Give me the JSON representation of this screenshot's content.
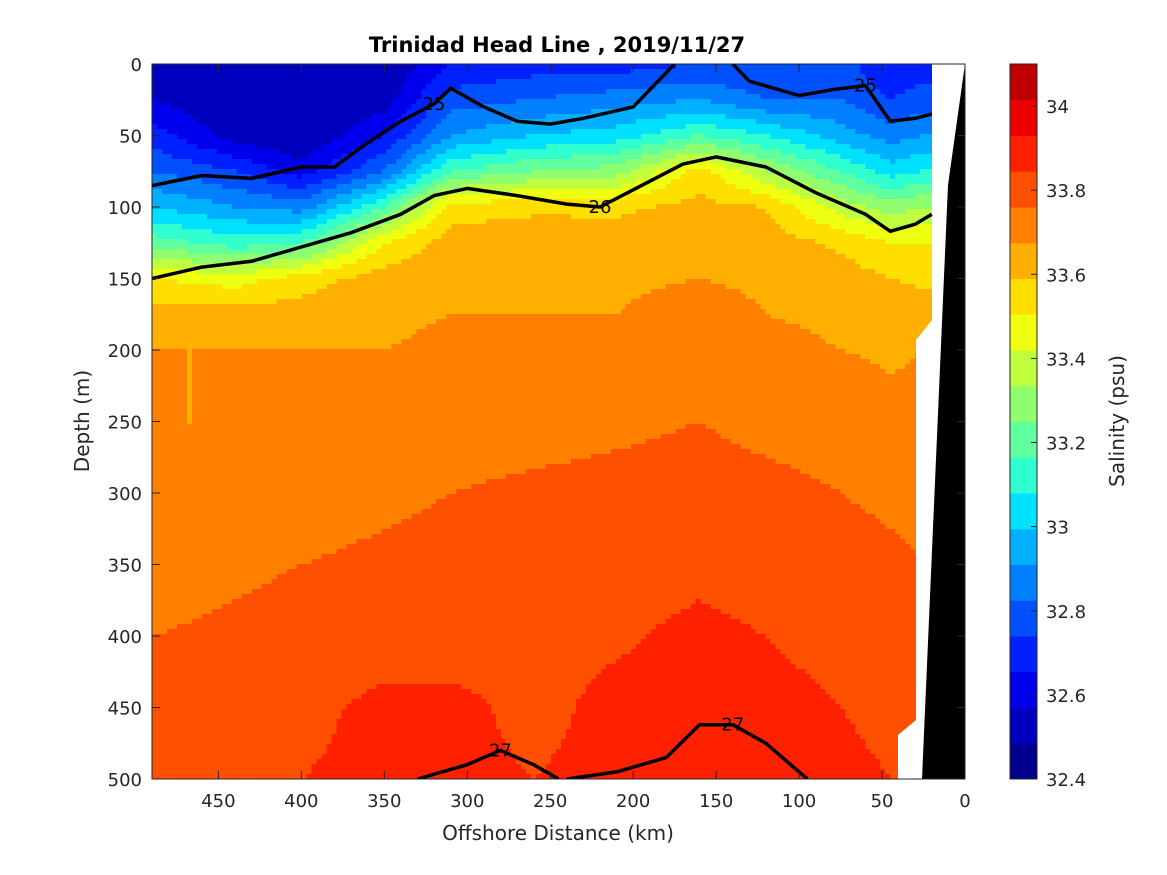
{
  "chart_data": {
    "type": "heatmap",
    "title": "Trinidad Head Line , 2019/11/27",
    "xlabel": "Offshore Distance (km)",
    "ylabel": "Depth (m)",
    "colorbar_label": "Salinity (psu)",
    "xlim": [
      490,
      0
    ],
    "ylim": [
      0,
      500
    ],
    "x_reversed": true,
    "y_reversed": true,
    "x_ticks": [
      450,
      400,
      350,
      300,
      250,
      200,
      150,
      100,
      50,
      0
    ],
    "y_ticks": [
      0,
      50,
      100,
      150,
      200,
      250,
      300,
      350,
      400,
      450,
      500
    ],
    "colorbar": {
      "min": 32.4,
      "max": 34.1,
      "step": 0.1,
      "ticks": [
        32.4,
        32.6,
        32.8,
        33,
        33.2,
        33.4,
        33.6,
        33.8,
        34
      ],
      "tick_labels": [
        "32.4",
        "32.6",
        "32.8",
        "33",
        "33.2",
        "33.4",
        "33.6",
        "33.8",
        "34"
      ],
      "colors": [
        "#00008f",
        "#0000bf",
        "#0000ef",
        "#0020ff",
        "#0050ff",
        "#0080ff",
        "#00b0ff",
        "#00e0ff",
        "#30ffcf",
        "#60ff9f",
        "#8fff70",
        "#bfff40",
        "#efff10",
        "#ffdf00",
        "#ffaf00",
        "#ff7f00",
        "#ff4f00",
        "#ff2000",
        "#ef0000",
        "#bf0000"
      ]
    },
    "salinity_profiles": {
      "depths": [
        0,
        25,
        50,
        75,
        100,
        125,
        150,
        175,
        200,
        250,
        300,
        350,
        400,
        450,
        500
      ],
      "stations": [
        {
          "x": 490,
          "s": [
            32.6,
            32.6,
            32.75,
            32.9,
            33.1,
            33.35,
            33.7,
            33.85,
            33.9,
            33.9,
            33.9,
            33.95,
            34.0,
            34.02,
            34.03
          ]
        },
        {
          "x": 440,
          "s": [
            32.5,
            32.5,
            32.55,
            32.8,
            33.0,
            33.25,
            33.65,
            33.85,
            33.9,
            33.9,
            33.93,
            33.98,
            34.02,
            34.05,
            34.08
          ]
        },
        {
          "x": 400,
          "s": [
            32.5,
            32.5,
            32.5,
            32.65,
            32.95,
            33.3,
            33.75,
            33.85,
            33.9,
            33.92,
            33.95,
            34.0,
            34.04,
            34.08,
            34.1
          ]
        },
        {
          "x": 350,
          "s": [
            32.5,
            32.55,
            32.7,
            32.9,
            33.3,
            33.7,
            33.85,
            33.88,
            33.9,
            33.95,
            33.98,
            34.02,
            34.06,
            34.12,
            34.12
          ]
        },
        {
          "x": 310,
          "s": [
            32.7,
            32.85,
            33.0,
            33.3,
            33.75,
            33.85,
            33.88,
            33.9,
            33.92,
            33.95,
            34.0,
            34.03,
            34.06,
            34.12,
            34.12
          ]
        },
        {
          "x": 260,
          "s": [
            32.75,
            32.9,
            33.1,
            33.4,
            33.78,
            33.86,
            33.88,
            33.9,
            33.93,
            33.96,
            34.02,
            34.05,
            34.08,
            34.08,
            34.1
          ]
        },
        {
          "x": 210,
          "s": [
            32.75,
            32.95,
            33.15,
            33.45,
            33.78,
            33.85,
            33.88,
            33.9,
            33.95,
            33.98,
            34.03,
            34.06,
            34.09,
            34.12,
            34.12
          ]
        },
        {
          "x": 160,
          "s": [
            32.8,
            33.0,
            33.3,
            33.75,
            33.83,
            33.86,
            33.9,
            33.95,
            33.97,
            34.0,
            34.04,
            34.08,
            34.12,
            34.12,
            34.12
          ]
        },
        {
          "x": 120,
          "s": [
            32.8,
            32.9,
            33.2,
            33.5,
            33.8,
            33.85,
            33.88,
            33.9,
            33.93,
            33.97,
            34.03,
            34.06,
            34.1,
            34.12,
            34.12
          ]
        },
        {
          "x": 75,
          "s": [
            32.85,
            32.9,
            33.05,
            33.3,
            33.55,
            33.78,
            33.85,
            33.88,
            33.9,
            33.95,
            34.0,
            34.04,
            34.08,
            34.1,
            34.12
          ]
        },
        {
          "x": 45,
          "s": [
            32.7,
            32.8,
            32.95,
            33.15,
            33.45,
            33.7,
            33.8,
            33.87,
            33.89,
            33.92,
            33.98,
            34.02,
            34.06,
            34.08,
            34.1
          ]
        },
        {
          "x": 25,
          "s": [
            32.75,
            32.85,
            33.0,
            33.2,
            33.5,
            33.7,
            33.78,
            33.85,
            33.9,
            33.92,
            33.97,
            34.0,
            34.04,
            34.05,
            34.05
          ]
        }
      ]
    },
    "density_contours": [
      {
        "label": "25",
        "bold": true,
        "points": [
          [
            490,
            85
          ],
          [
            460,
            78
          ],
          [
            430,
            80
          ],
          [
            400,
            72
          ],
          [
            380,
            72
          ],
          [
            360,
            55
          ],
          [
            340,
            40
          ],
          [
            320,
            28
          ],
          [
            310,
            17
          ],
          [
            290,
            30
          ],
          [
            270,
            40
          ],
          [
            250,
            42
          ],
          [
            230,
            38
          ],
          [
            200,
            30
          ],
          [
            175,
            0
          ]
        ]
      },
      {
        "label": "25",
        "bold": true,
        "points": [
          [
            140,
            0
          ],
          [
            130,
            12
          ],
          [
            100,
            22
          ],
          [
            80,
            18
          ],
          [
            60,
            15
          ],
          [
            45,
            40
          ],
          [
            30,
            38
          ],
          [
            20,
            35
          ]
        ]
      },
      {
        "label": "26",
        "bold": true,
        "points": [
          [
            490,
            150
          ],
          [
            460,
            142
          ],
          [
            430,
            138
          ],
          [
            400,
            128
          ],
          [
            370,
            118
          ],
          [
            340,
            105
          ],
          [
            320,
            92
          ],
          [
            300,
            87
          ],
          [
            270,
            92
          ],
          [
            240,
            98
          ],
          [
            220,
            100
          ],
          [
            200,
            88
          ],
          [
            170,
            70
          ],
          [
            150,
            65
          ],
          [
            120,
            72
          ],
          [
            90,
            90
          ],
          [
            60,
            105
          ],
          [
            45,
            117
          ],
          [
            30,
            112
          ],
          [
            20,
            105
          ]
        ]
      },
      {
        "label": "27",
        "bold": true,
        "points": [
          [
            330,
            500
          ],
          [
            300,
            490
          ],
          [
            280,
            480
          ],
          [
            260,
            490
          ],
          [
            245,
            500
          ]
        ]
      },
      {
        "label": "27",
        "bold": true,
        "points": [
          [
            240,
            500
          ],
          [
            210,
            495
          ],
          [
            180,
            485
          ],
          [
            160,
            462
          ],
          [
            140,
            462
          ],
          [
            120,
            475
          ],
          [
            100,
            495
          ],
          [
            95,
            500
          ]
        ]
      }
    ]
  }
}
